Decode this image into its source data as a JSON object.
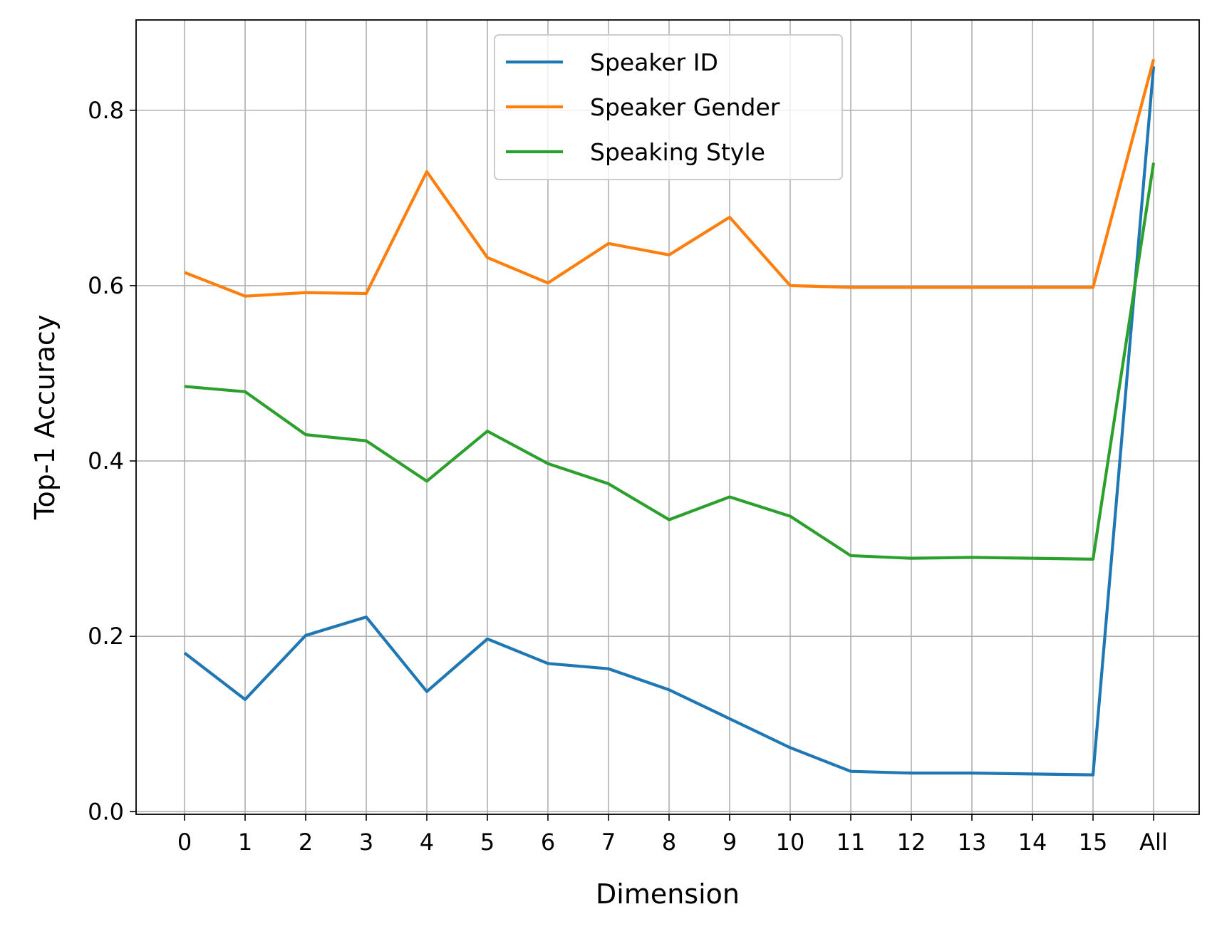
{
  "chart_data": {
    "type": "line",
    "categories": [
      "0",
      "1",
      "2",
      "3",
      "4",
      "5",
      "6",
      "7",
      "8",
      "9",
      "10",
      "11",
      "12",
      "13",
      "14",
      "15",
      "All"
    ],
    "series": [
      {
        "name": "Speaker ID",
        "color": "#1f77b4",
        "values": [
          0.181,
          0.128,
          0.201,
          0.222,
          0.137,
          0.197,
          0.169,
          0.163,
          0.139,
          0.106,
          0.073,
          0.046,
          0.044,
          0.044,
          0.043,
          0.042,
          0.85
        ]
      },
      {
        "name": "Speaker Gender",
        "color": "#ff7f0e",
        "values": [
          0.615,
          0.588,
          0.592,
          0.591,
          0.73,
          0.632,
          0.603,
          0.648,
          0.635,
          0.678,
          0.6,
          0.598,
          0.598,
          0.598,
          0.598,
          0.598,
          0.858
        ]
      },
      {
        "name": "Speaking Style",
        "color": "#2ca02c",
        "values": [
          0.485,
          0.479,
          0.43,
          0.423,
          0.377,
          0.434,
          0.397,
          0.374,
          0.333,
          0.359,
          0.337,
          0.292,
          0.289,
          0.29,
          0.289,
          0.288,
          0.74
        ]
      }
    ],
    "title": "",
    "xlabel": "Dimension",
    "ylabel": "Top-1 Accuracy",
    "ylim": [
      -0.003,
      0.903
    ],
    "yticks": [
      "0.0",
      "0.2",
      "0.4",
      "0.6",
      "0.8"
    ],
    "ytick_values": [
      0.0,
      0.2,
      0.4,
      0.6,
      0.8
    ],
    "grid": true,
    "legend_position": "top-center"
  }
}
